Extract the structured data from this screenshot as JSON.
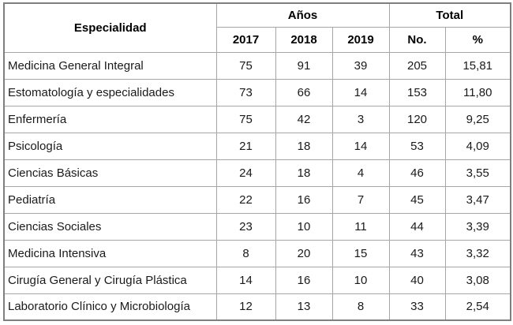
{
  "table": {
    "header": {
      "especialidad": "Especialidad",
      "anos_group": "Años",
      "total_group": "Total",
      "years": [
        "2017",
        "2018",
        "2019"
      ],
      "no_label": "No.",
      "pct_label": "%"
    },
    "rows": [
      {
        "name": "Medicina General Integral",
        "y2017": "75",
        "y2018": "91",
        "y2019": "39",
        "no": "205",
        "pct": "15,81"
      },
      {
        "name": "Estomatología y especialidades",
        "y2017": "73",
        "y2018": "66",
        "y2019": "14",
        "no": "153",
        "pct": "11,80"
      },
      {
        "name": "Enfermería",
        "y2017": "75",
        "y2018": "42",
        "y2019": "3",
        "no": "120",
        "pct": "9,25"
      },
      {
        "name": "Psicología",
        "y2017": "21",
        "y2018": "18",
        "y2019": "14",
        "no": "53",
        "pct": "4,09"
      },
      {
        "name": "Ciencias Básicas",
        "y2017": "24",
        "y2018": "18",
        "y2019": "4",
        "no": "46",
        "pct": "3,55"
      },
      {
        "name": "Pediatría",
        "y2017": "22",
        "y2018": "16",
        "y2019": "7",
        "no": "45",
        "pct": "3,47"
      },
      {
        "name": "Ciencias Sociales",
        "y2017": "23",
        "y2018": "10",
        "y2019": "11",
        "no": "44",
        "pct": "3,39"
      },
      {
        "name": "Medicina Intensiva",
        "y2017": "8",
        "y2018": "20",
        "y2019": "15",
        "no": "43",
        "pct": "3,32"
      },
      {
        "name": "Cirugía General y Cirugía Plástica",
        "y2017": "14",
        "y2018": "16",
        "y2019": "10",
        "no": "40",
        "pct": "3,08"
      },
      {
        "name": "Laboratorio Clínico y Microbiología",
        "y2017": "12",
        "y2018": "13",
        "y2019": "8",
        "no": "33",
        "pct": "2,54"
      }
    ]
  },
  "colors": {
    "outer_border": "#7f7f7f",
    "inner_border": "#a6a6a6",
    "text": "#1a1a1a",
    "background": "#ffffff"
  },
  "chart_data": {
    "type": "table",
    "title": "",
    "columns": [
      "Especialidad",
      "Años 2017",
      "Años 2018",
      "Años 2019",
      "Total No.",
      "Total %"
    ],
    "rows": [
      [
        "Medicina General Integral",
        75,
        91,
        39,
        205,
        "15,81"
      ],
      [
        "Estomatología y especialidades",
        73,
        66,
        14,
        153,
        "11,80"
      ],
      [
        "Enfermería",
        75,
        42,
        3,
        120,
        "9,25"
      ],
      [
        "Psicología",
        21,
        18,
        14,
        53,
        "4,09"
      ],
      [
        "Ciencias Básicas",
        24,
        18,
        4,
        46,
        "3,55"
      ],
      [
        "Pediatría",
        22,
        16,
        7,
        45,
        "3,47"
      ],
      [
        "Ciencias Sociales",
        23,
        10,
        11,
        44,
        "3,39"
      ],
      [
        "Medicina Intensiva",
        8,
        20,
        15,
        43,
        "3,32"
      ],
      [
        "Cirugía General y Cirugía Plástica",
        14,
        16,
        10,
        40,
        "3,08"
      ],
      [
        "Laboratorio Clínico y Microbiología",
        12,
        13,
        8,
        33,
        "2,54"
      ]
    ]
  }
}
